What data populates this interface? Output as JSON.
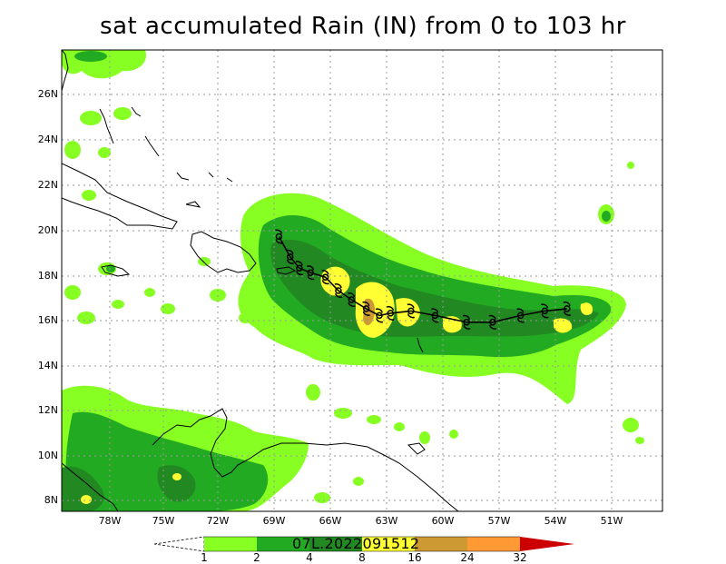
{
  "title": "sat accumulated Rain (IN) from 0 to 103 hr",
  "storm_id": "07L.2022091512",
  "map": {
    "lat_labels": [
      "26N",
      "24N",
      "22N",
      "20N",
      "18N",
      "16N",
      "14N",
      "12N",
      "10N",
      "8N"
    ],
    "lon_labels": [
      "78W",
      "75W",
      "72W",
      "69W",
      "66W",
      "63W",
      "60W",
      "57W",
      "54W",
      "51W"
    ]
  },
  "colorbar": {
    "levels": [
      "1",
      "2",
      "4",
      "8",
      "16",
      "24",
      "32"
    ],
    "colors": [
      "#ffffff",
      "#88ff22",
      "#22aa22",
      "#228822",
      "#ffff33",
      "#cc9933",
      "#ff9933",
      "#cc0000"
    ]
  },
  "track": {
    "symbol": "tropical-cyclone-symbol",
    "points": [
      {
        "lon": -68.9,
        "lat": 19.7
      },
      {
        "lon": -68.3,
        "lat": 18.8
      },
      {
        "lon": -67.8,
        "lat": 18.3
      },
      {
        "lon": -67.2,
        "lat": 18.1
      },
      {
        "lon": -66.4,
        "lat": 17.9
      },
      {
        "lon": -65.7,
        "lat": 17.3
      },
      {
        "lon": -65.0,
        "lat": 16.9
      },
      {
        "lon": -64.2,
        "lat": 16.5
      },
      {
        "lon": -63.5,
        "lat": 16.2
      },
      {
        "lon": -62.9,
        "lat": 16.3
      },
      {
        "lon": -61.8,
        "lat": 16.4
      },
      {
        "lon": -60.5,
        "lat": 16.2
      },
      {
        "lon": -58.8,
        "lat": 15.9
      },
      {
        "lon": -57.4,
        "lat": 15.9
      },
      {
        "lon": -55.9,
        "lat": 16.2
      },
      {
        "lon": -54.6,
        "lat": 16.4
      },
      {
        "lon": -53.4,
        "lat": 16.5
      }
    ]
  }
}
